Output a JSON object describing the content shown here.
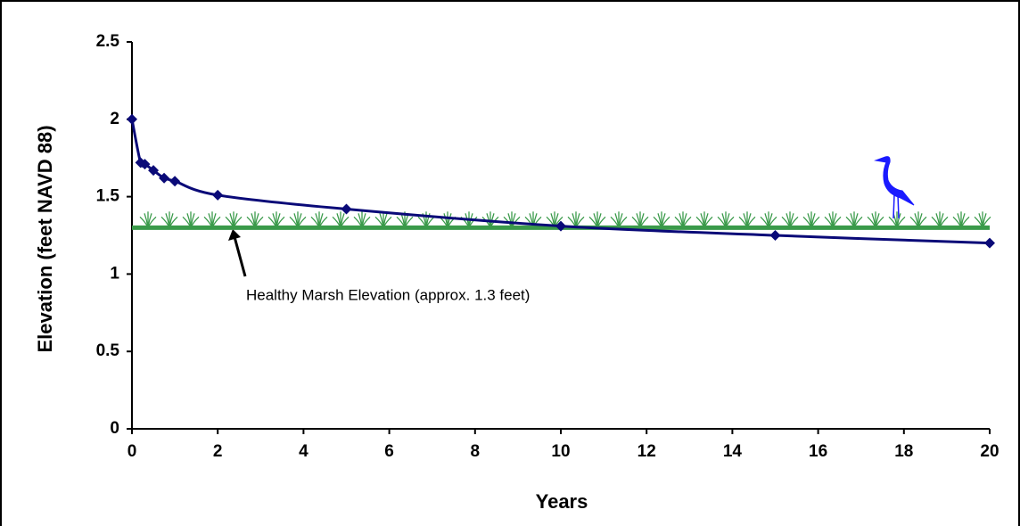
{
  "chart_data": {
    "type": "line",
    "x_label": "Years",
    "y_label": "Elevation (feet NAVD 88)",
    "x": [
      0,
      0.2,
      0.3,
      0.5,
      0.75,
      1,
      2,
      5,
      10,
      15,
      20
    ],
    "series": [
      {
        "name": "Elevation",
        "color": "#0a0a78",
        "values": [
          2.0,
          1.72,
          1.71,
          1.67,
          1.62,
          1.6,
          1.51,
          1.42,
          1.31,
          1.25,
          1.2
        ]
      }
    ],
    "xlim": [
      0,
      20
    ],
    "xticks": [
      0,
      2,
      4,
      6,
      8,
      10,
      12,
      14,
      16,
      18,
      20
    ],
    "ylim": [
      0,
      2.5
    ],
    "yticks": [
      0,
      0.5,
      1,
      1.5,
      2,
      2.5
    ],
    "reference_line": {
      "value": 1.3,
      "color": "#3a9a4a",
      "label": "Healthy Marsh Elevation (approx. 1.3 feet)"
    },
    "grid": false
  }
}
